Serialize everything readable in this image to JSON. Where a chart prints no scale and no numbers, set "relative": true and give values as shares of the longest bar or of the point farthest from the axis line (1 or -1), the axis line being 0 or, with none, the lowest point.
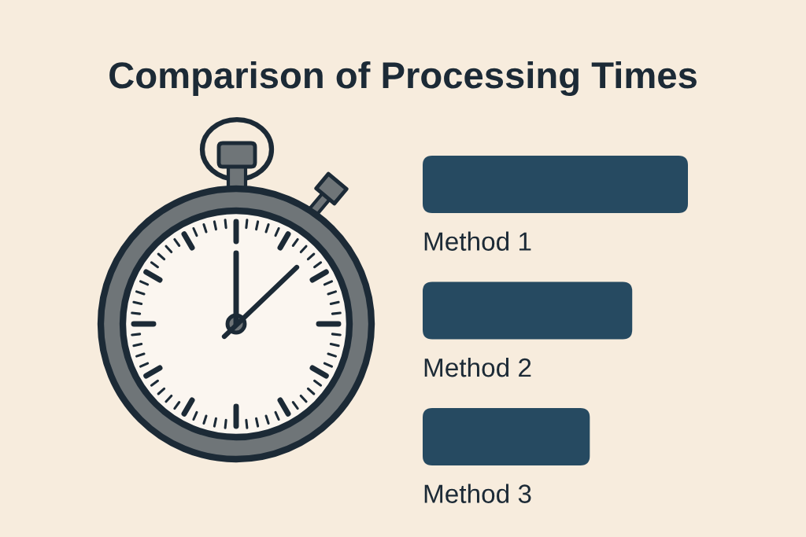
{
  "chart_data": {
    "type": "bar",
    "orientation": "horizontal",
    "relative": true,
    "title": "Comparison of Processing Times",
    "categories": [
      "Method 1",
      "Method 2",
      "Method 3"
    ],
    "values": [
      1,
      0.79,
      0.63
    ],
    "color": "#264a61"
  }
}
